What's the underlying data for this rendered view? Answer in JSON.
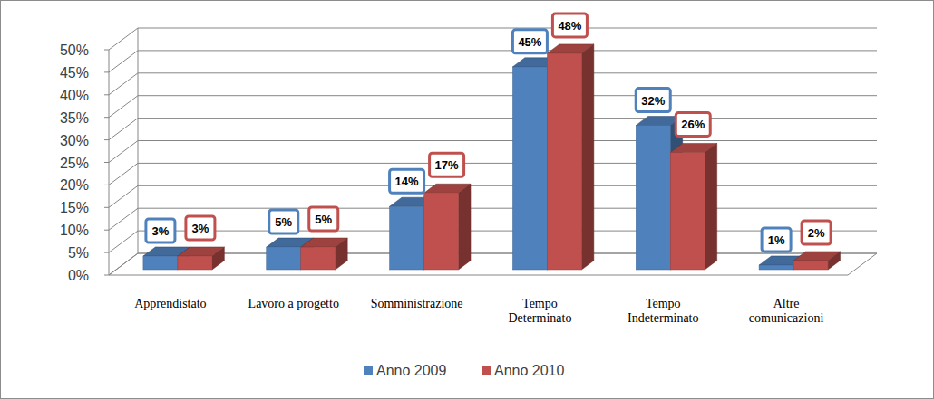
{
  "chart_data": {
    "type": "bar",
    "categories": [
      "Apprendistato",
      "Lavoro a progetto",
      "Somministrazione",
      "Tempo\nDeterminato",
      "Tempo\nIndeterminato",
      "Altre\ncomunicazioni"
    ],
    "series": [
      {
        "name": "Anno 2009",
        "color": "#4f81bd",
        "values": [
          3,
          5,
          14,
          45,
          32,
          1
        ],
        "value_labels": [
          "3%",
          "5%",
          "14%",
          "45%",
          "32%",
          "1%"
        ]
      },
      {
        "name": "Anno 2010",
        "color": "#c0504d",
        "values": [
          3,
          5,
          17,
          48,
          26,
          2
        ],
        "value_labels": [
          "3%",
          "5%",
          "17%",
          "48%",
          "26%",
          "2%"
        ]
      }
    ],
    "ylim": [
      0,
      50
    ],
    "yticks": [
      {
        "value": 0,
        "label": "0%"
      },
      {
        "value": 5,
        "label": "5%"
      },
      {
        "value": 10,
        "label": "10%"
      },
      {
        "value": 15,
        "label": "15%"
      },
      {
        "value": 20,
        "label": "20%"
      },
      {
        "value": 25,
        "label": "25%"
      },
      {
        "value": 30,
        "label": "30%"
      },
      {
        "value": 35,
        "label": "35%"
      },
      {
        "value": 40,
        "label": "40%"
      },
      {
        "value": 45,
        "label": "45%"
      },
      {
        "value": 50,
        "label": "50%"
      }
    ],
    "grid": true,
    "legend": "bottom",
    "data_labels": true
  }
}
